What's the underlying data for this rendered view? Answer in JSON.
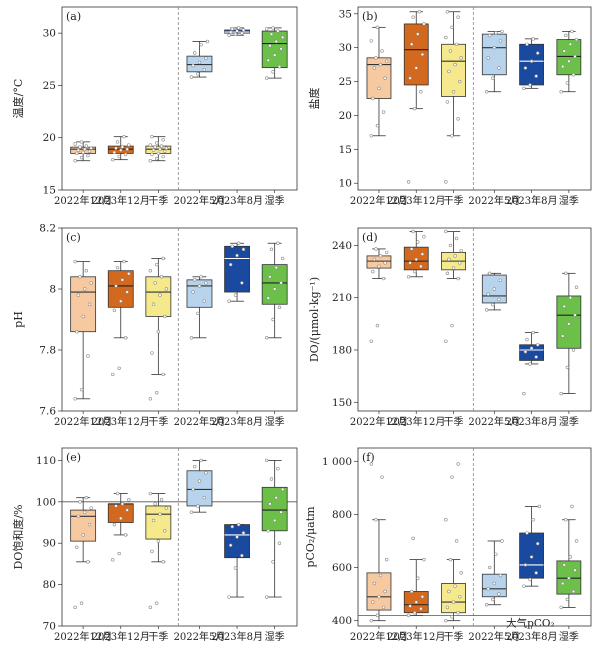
{
  "colors": {
    "dec2022": "#f7c9a0",
    "dec2023": "#d2691e",
    "dry": "#f5e98c",
    "may2022": "#b8d4ec",
    "aug2023": "#1a4aa0",
    "wet": "#6cc04a"
  },
  "chart_data": [
    {
      "type": "box",
      "label": "(a)",
      "ylabel": "温度/°C",
      "yticks": [
        15,
        20,
        25,
        30
      ],
      "ylim": [
        15,
        32.5
      ],
      "categories": [
        "2022年12月",
        "2023年12月",
        "干季",
        "2022年5月",
        "2023年8月",
        "湿季"
      ],
      "boxes": [
        {
          "min": 17.8,
          "q1": 18.5,
          "median": 18.9,
          "q3": 19.1,
          "max": 19.6,
          "points": [
            17.8,
            18.1,
            18.3,
            18.5,
            18.6,
            18.7,
            18.8,
            18.9,
            19.0,
            19.1,
            19.2,
            19.4,
            19.6
          ]
        },
        {
          "min": 17.9,
          "q1": 18.5,
          "median": 18.9,
          "q3": 19.2,
          "max": 20.1,
          "points": [
            17.9,
            18.2,
            18.4,
            18.6,
            18.8,
            18.9,
            19.0,
            19.1,
            19.3,
            19.6,
            20.1
          ]
        },
        {
          "min": 17.8,
          "q1": 18.5,
          "median": 18.9,
          "q3": 19.2,
          "max": 20.1,
          "points": [
            17.8,
            18.0,
            18.2,
            18.4,
            18.5,
            18.7,
            18.8,
            18.9,
            19.0,
            19.1,
            19.2,
            19.3,
            19.5,
            19.8,
            20.1
          ]
        },
        {
          "min": 25.8,
          "q1": 26.3,
          "median": 27.0,
          "q3": 27.8,
          "max": 29.2,
          "points": [
            25.8,
            26.1,
            26.5,
            26.9,
            27.2,
            27.6,
            28.1,
            28.9,
            29.2
          ]
        },
        {
          "min": 29.8,
          "q1": 30.0,
          "median": 30.1,
          "q3": 30.3,
          "max": 30.5,
          "points": [
            29.8,
            29.9,
            30.0,
            30.1,
            30.2,
            30.3,
            30.4,
            30.5
          ]
        },
        {
          "min": 25.7,
          "q1": 26.7,
          "median": 29.0,
          "q3": 30.2,
          "max": 30.5,
          "points": [
            25.7,
            26.3,
            26.8,
            27.4,
            27.9,
            28.5,
            28.8,
            29.2,
            29.6,
            29.9,
            30.2,
            30.4,
            30.5
          ]
        }
      ]
    },
    {
      "type": "box",
      "label": "(b)",
      "ylabel": "盐度",
      "yticks": [
        10,
        15,
        20,
        25,
        30,
        35
      ],
      "ylim": [
        9,
        36
      ],
      "categories": [
        "2022年12月",
        "2023年12月",
        "干季",
        "2022年5月",
        "2023年8月",
        "湿季"
      ],
      "boxes": [
        {
          "min": 17.0,
          "q1": 22.5,
          "median": 27.5,
          "q3": 28.5,
          "max": 33.0,
          "points": [
            17.0,
            18.5,
            20.5,
            22.5,
            24.0,
            25.5,
            27.0,
            27.5,
            28.0,
            28.5,
            29.5,
            31.0,
            33.0
          ]
        },
        {
          "min": 21.0,
          "q1": 24.5,
          "median": 29.7,
          "q3": 33.5,
          "max": 35.3,
          "points": [
            10.2,
            21.0,
            23.5,
            25.5,
            27.0,
            29.0,
            30.5,
            32.0,
            33.5,
            34.5,
            35.3
          ]
        },
        {
          "min": 17.0,
          "q1": 22.8,
          "median": 28.0,
          "q3": 30.5,
          "max": 35.3,
          "points": [
            10.2,
            17.0,
            19.5,
            22.0,
            23.5,
            25.0,
            26.5,
            27.5,
            28.5,
            29.5,
            30.5,
            31.5,
            33.0,
            34.5,
            35.3
          ]
        },
        {
          "min": 23.5,
          "q1": 26.0,
          "median": 30.0,
          "q3": 32.0,
          "max": 32.4,
          "points": [
            23.5,
            25.5,
            27.0,
            28.5,
            30.0,
            31.0,
            31.8,
            32.2,
            32.4
          ]
        },
        {
          "min": 24.0,
          "q1": 24.5,
          "median": 28.0,
          "q3": 30.5,
          "max": 31.3,
          "points": [
            24.0,
            24.5,
            25.8,
            27.0,
            28.0,
            29.2,
            30.5,
            31.3
          ]
        },
        {
          "min": 23.5,
          "q1": 26.0,
          "median": 28.7,
          "q3": 31.2,
          "max": 32.4,
          "points": [
            23.5,
            24.8,
            26.0,
            27.2,
            28.0,
            28.7,
            29.5,
            30.5,
            31.2,
            31.8,
            32.4
          ]
        }
      ]
    },
    {
      "type": "box",
      "label": "(c)",
      "ylabel": "pH",
      "yticks": [
        7.6,
        7.8,
        8.0,
        8.2
      ],
      "ylim": [
        7.6,
        8.2
      ],
      "categories": [
        "2022年12月",
        "2023年12月",
        "干季",
        "2022年5月",
        "2023年8月",
        "湿季"
      ],
      "boxes": [
        {
          "min": 7.64,
          "q1": 7.86,
          "median": 7.99,
          "q3": 8.04,
          "max": 8.09,
          "points": [
            7.64,
            7.67,
            7.78,
            7.86,
            7.91,
            7.95,
            7.98,
            8.0,
            8.02,
            8.04,
            8.06,
            8.09
          ]
        },
        {
          "min": 7.84,
          "q1": 7.94,
          "median": 8.01,
          "q3": 8.06,
          "max": 8.09,
          "points": [
            7.72,
            7.74,
            7.84,
            7.93,
            7.96,
            7.99,
            8.01,
            8.03,
            8.05,
            8.07,
            8.09
          ]
        },
        {
          "min": 7.72,
          "q1": 7.91,
          "median": 7.99,
          "q3": 8.04,
          "max": 8.1,
          "points": [
            7.64,
            7.66,
            7.72,
            7.79,
            7.86,
            7.91,
            7.95,
            7.98,
            8.0,
            8.02,
            8.04,
            8.06,
            8.08,
            8.1
          ]
        },
        {
          "min": 7.84,
          "q1": 7.94,
          "median": 8.01,
          "q3": 8.03,
          "max": 8.04,
          "points": [
            7.84,
            7.92,
            7.96,
            7.99,
            8.01,
            8.02,
            8.03,
            8.04
          ]
        },
        {
          "min": 7.96,
          "q1": 7.99,
          "median": 8.1,
          "q3": 8.14,
          "max": 8.15,
          "points": [
            7.96,
            7.98,
            8.02,
            8.08,
            8.11,
            8.13,
            8.14,
            8.15
          ]
        },
        {
          "min": 7.84,
          "q1": 7.95,
          "median": 8.02,
          "q3": 8.08,
          "max": 8.15,
          "points": [
            7.84,
            7.9,
            7.94,
            7.97,
            8.0,
            8.02,
            8.04,
            8.07,
            8.1,
            8.13,
            8.15
          ]
        }
      ]
    },
    {
      "type": "box",
      "label": "(d)",
      "ylabel": "DO/(μmol·kg⁻¹)",
      "yticks": [
        150,
        180,
        210,
        240
      ],
      "ylim": [
        145,
        250
      ],
      "categories": [
        "2022年12月",
        "2023年12月",
        "干季",
        "2022年5月",
        "2023年8月",
        "湿季"
      ],
      "boxes": [
        {
          "min": 221,
          "q1": 227,
          "median": 231,
          "q3": 234,
          "max": 238,
          "points": [
            185,
            194,
            221,
            225,
            228,
            230,
            232,
            234,
            236,
            238
          ]
        },
        {
          "min": 222,
          "q1": 226,
          "median": 231,
          "q3": 239,
          "max": 248,
          "points": [
            222,
            225,
            228,
            230,
            232,
            235,
            238,
            242,
            245,
            248
          ]
        },
        {
          "min": 221,
          "q1": 226,
          "median": 231,
          "q3": 236,
          "max": 248,
          "points": [
            185,
            194,
            221,
            224,
            227,
            230,
            232,
            234,
            237,
            240,
            244,
            248
          ]
        },
        {
          "min": 203,
          "q1": 207,
          "median": 211,
          "q3": 223,
          "max": 224,
          "points": [
            203,
            206,
            209,
            212,
            215,
            220,
            224
          ]
        },
        {
          "min": 172,
          "q1": 174,
          "median": 180,
          "q3": 183,
          "max": 190,
          "points": [
            155,
            172,
            176,
            179,
            181,
            183,
            186,
            190
          ]
        },
        {
          "min": 155,
          "q1": 181,
          "median": 200,
          "q3": 211,
          "max": 224,
          "points": [
            155,
            170,
            180,
            188,
            195,
            200,
            205,
            210,
            216,
            224
          ]
        }
      ]
    },
    {
      "type": "box",
      "label": "(e)",
      "ylabel": "DO饱和度/%",
      "yticks": [
        70,
        80,
        90,
        100,
        110
      ],
      "ylim": [
        70,
        113
      ],
      "refline": 100,
      "categories": [
        "2022年12月",
        "2023年12月",
        "干季",
        "2022年5月",
        "2023年8月",
        "湿季"
      ],
      "boxes": [
        {
          "min": 85.5,
          "q1": 90.5,
          "median": 96.5,
          "q3": 98.0,
          "max": 101.0,
          "points": [
            74.5,
            75.5,
            85.5,
            89.0,
            92.0,
            94.5,
            96.5,
            97.5,
            98.5,
            100.0,
            101.0
          ]
        },
        {
          "min": 92.0,
          "q1": 95.0,
          "median": 99.5,
          "q3": 99.5,
          "max": 102.0,
          "points": [
            86.0,
            87.5,
            92.0,
            94.5,
            96.0,
            98.0,
            99.0,
            99.5,
            100.5,
            102.0
          ]
        },
        {
          "min": 85.5,
          "q1": 91.0,
          "median": 97.0,
          "q3": 99.0,
          "max": 102.0,
          "points": [
            74.5,
            75.5,
            85.5,
            88.0,
            90.5,
            93.0,
            95.5,
            97.0,
            98.5,
            99.5,
            100.5,
            102.0
          ]
        },
        {
          "min": 97.5,
          "q1": 99.0,
          "median": 103.0,
          "q3": 107.5,
          "max": 110.0,
          "points": [
            97.5,
            99.0,
            101.0,
            103.0,
            105.0,
            107.0,
            108.5,
            110.0
          ]
        },
        {
          "min": 77.0,
          "q1": 86.5,
          "median": 92.0,
          "q3": 94.5,
          "max": 94.5,
          "points": [
            77.0,
            84.0,
            87.0,
            89.5,
            91.5,
            92.5,
            94.0,
            94.5
          ]
        },
        {
          "min": 77.0,
          "q1": 93.0,
          "median": 98.0,
          "q3": 103.5,
          "max": 110.0,
          "points": [
            77.0,
            85.5,
            90.0,
            93.0,
            95.5,
            97.5,
            99.5,
            101.0,
            103.0,
            105.5,
            108.0,
            110.0
          ]
        }
      ]
    },
    {
      "type": "box",
      "label": "(f)",
      "ylabel": "pCO₂/μatm",
      "yticks": [
        400,
        600,
        800,
        1000
      ],
      "yticklabels": [
        "400",
        "600",
        "800",
        "1 000"
      ],
      "ylim": [
        380,
        1050
      ],
      "refline": 420,
      "refline_label": "大气pCO₂",
      "categories": [
        "2022年12月",
        "2023年12月",
        "干季",
        "2022年5月",
        "2023年8月",
        "湿季"
      ],
      "boxes": [
        {
          "min": 400,
          "q1": 440,
          "median": 490,
          "q3": 580,
          "max": 780,
          "points": [
            400,
            420,
            450,
            470,
            490,
            510,
            540,
            570,
            630,
            780,
            940,
            990
          ]
        },
        {
          "min": 420,
          "q1": 430,
          "median": 460,
          "q3": 510,
          "max": 630,
          "points": [
            420,
            430,
            445,
            455,
            470,
            490,
            510,
            560,
            630,
            710
          ]
        },
        {
          "min": 400,
          "q1": 430,
          "median": 470,
          "q3": 540,
          "max": 630,
          "points": [
            400,
            415,
            430,
            450,
            470,
            490,
            510,
            530,
            580,
            630,
            700,
            780,
            940,
            990
          ]
        },
        {
          "min": 460,
          "q1": 490,
          "median": 520,
          "q3": 575,
          "max": 700,
          "points": [
            460,
            480,
            500,
            520,
            540,
            570,
            600,
            650,
            700
          ]
        },
        {
          "min": 530,
          "q1": 560,
          "median": 610,
          "q3": 730,
          "max": 830,
          "points": [
            530,
            555,
            580,
            610,
            640,
            690,
            730,
            780,
            830
          ]
        },
        {
          "min": 450,
          "q1": 500,
          "median": 560,
          "q3": 625,
          "max": 780,
          "points": [
            450,
            480,
            510,
            540,
            560,
            590,
            610,
            640,
            700,
            780,
            830
          ]
        }
      ]
    }
  ]
}
